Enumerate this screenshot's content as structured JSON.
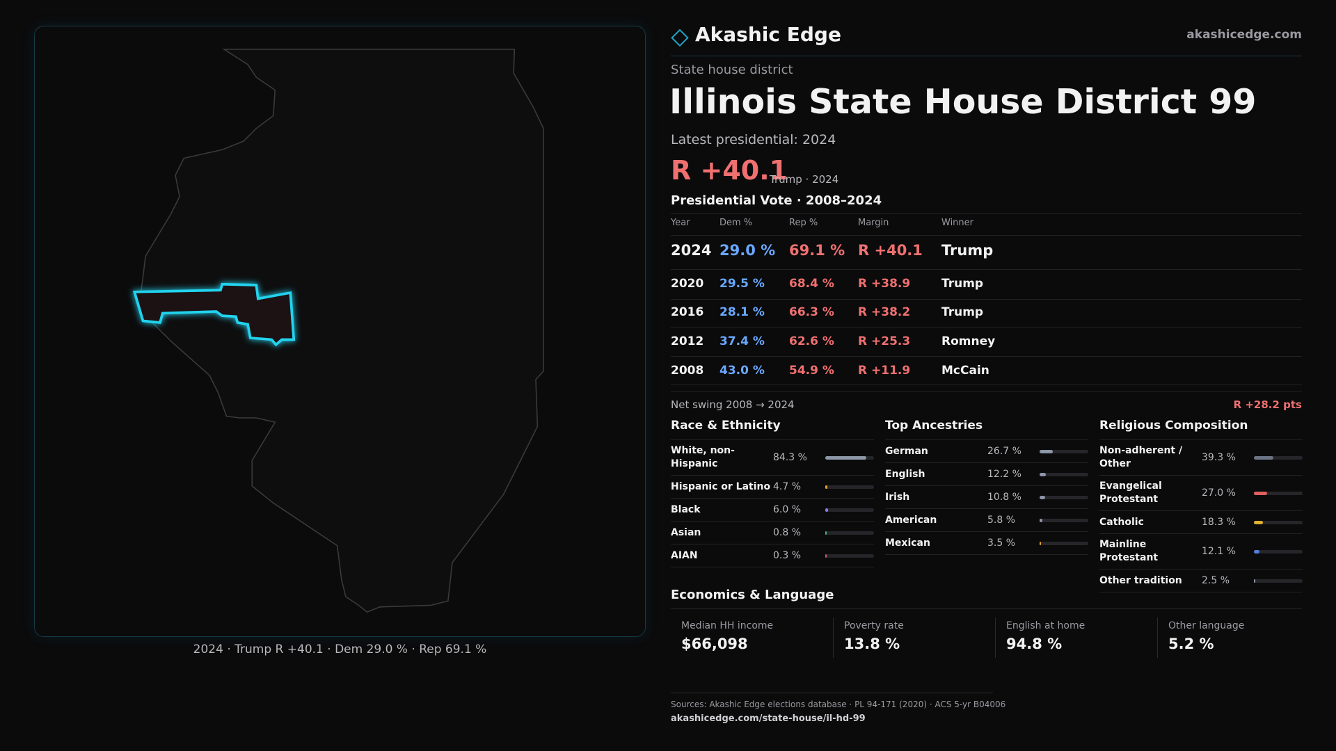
{
  "header": {
    "brand": "Akashic Edge",
    "site": "akashicedge.com"
  },
  "district": {
    "kind": "State house district",
    "title": "Illinois State House District 99",
    "latest_label": "Latest presidential: 2024",
    "margin": "R +40.1",
    "margin_note": "Trump · 2024"
  },
  "map": {
    "caption": "2024 · Trump R +40.1 · Dem 29.0 % · Rep 69.1 %"
  },
  "presidential": {
    "title": "Presidential Vote · 2008–2024",
    "columns": [
      "Year",
      "Dem %",
      "Rep %",
      "Margin",
      "Winner"
    ],
    "rows": [
      [
        "2024",
        "29.0 %",
        "69.1 %",
        "R +40.1",
        "Trump"
      ],
      [
        "2020",
        "29.5 %",
        "68.4 %",
        "R +38.9",
        "Trump"
      ],
      [
        "2016",
        "28.1 %",
        "66.3 %",
        "R +38.2",
        "Trump"
      ],
      [
        "2012",
        "37.4 %",
        "62.6 %",
        "R +25.3",
        "Romney"
      ],
      [
        "2008",
        "43.0 %",
        "54.9 %",
        "R +11.9",
        "McCain"
      ]
    ],
    "swing_label": "Net swing 2008 → 2024",
    "swing": "R +28.2 pts"
  },
  "demographics": [
    {
      "title": "Race & Ethnicity",
      "items": [
        {
          "label": "White, non-Hispanic",
          "value": 84.3,
          "value_label": "84.3 %",
          "color": "#8c97a8"
        },
        {
          "label": "Hispanic or Latino",
          "value": 4.7,
          "value_label": "4.7 %",
          "color": "#e0a030"
        },
        {
          "label": "Black",
          "value": 6.0,
          "value_label": "6.0 %",
          "color": "#8a7be6"
        },
        {
          "label": "Asian",
          "value": 0.8,
          "value_label": "0.8 %",
          "color": "#3fb37f"
        },
        {
          "label": "AIAN",
          "value": 0.3,
          "value_label": "0.3 %",
          "color": "#c06060"
        }
      ]
    },
    {
      "title": "Top Ancestries",
      "items": [
        {
          "label": "German",
          "value": 26.7,
          "value_label": "26.7 %",
          "color": "#8c97a8"
        },
        {
          "label": "English",
          "value": 12.2,
          "value_label": "12.2 %",
          "color": "#8c97a8"
        },
        {
          "label": "Irish",
          "value": 10.8,
          "value_label": "10.8 %",
          "color": "#8c97a8"
        },
        {
          "label": "American",
          "value": 5.8,
          "value_label": "5.8 %",
          "color": "#8c97a8"
        },
        {
          "label": "Mexican",
          "value": 3.5,
          "value_label": "3.5 %",
          "color": "#e0a030"
        }
      ]
    },
    {
      "title": "Religious Composition",
      "items": [
        {
          "label": "Non-adherent / Other",
          "value": 39.3,
          "value_label": "39.3 %",
          "color": "#6c7585"
        },
        {
          "label": "Evangelical Protestant",
          "value": 27.0,
          "value_label": "27.0 %",
          "color": "#e06060"
        },
        {
          "label": "Catholic",
          "value": 18.3,
          "value_label": "18.3 %",
          "color": "#e0b030"
        },
        {
          "label": "Mainline Protestant",
          "value": 12.1,
          "value_label": "12.1 %",
          "color": "#5080e0"
        },
        {
          "label": "Other tradition",
          "value": 2.5,
          "value_label": "2.5 %",
          "color": "#8c97a8"
        }
      ]
    }
  ],
  "economics": {
    "title": "Economics & Language",
    "items": [
      {
        "label": "Median HH income",
        "value": "$66,098"
      },
      {
        "label": "Poverty rate",
        "value": "13.8 %"
      },
      {
        "label": "English at home",
        "value": "94.8 %"
      },
      {
        "label": "Other language",
        "value": "5.2 %"
      }
    ]
  },
  "footer": {
    "sources": "Sources: Akashic Edge elections database · PL 94-171 (2020) · ACS 5-yr B04006",
    "url": "akashicedge.com/state-house/il-hd-99"
  }
}
